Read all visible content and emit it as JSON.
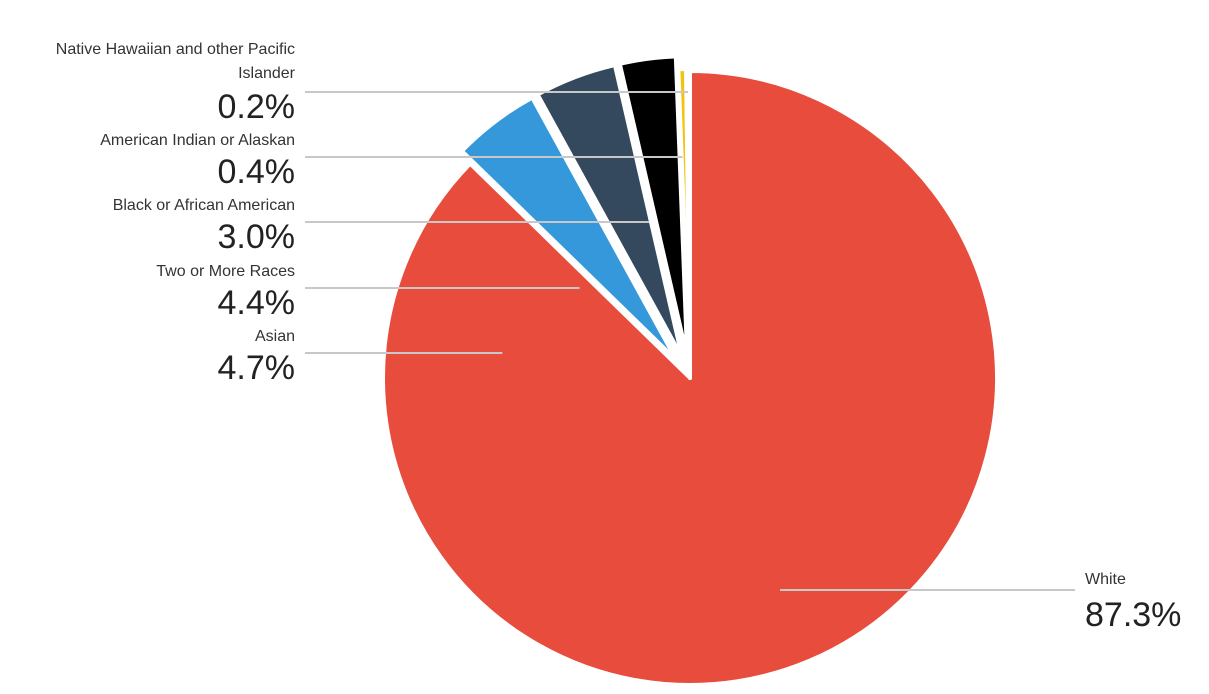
{
  "chart_data": {
    "type": "pie",
    "start_angle_deg": 0,
    "direction": "clockwise",
    "slices": [
      {
        "label": "White",
        "value": 87.3,
        "display": "87.3%",
        "color": "#e74c3c",
        "exploded": false
      },
      {
        "label": "Asian",
        "value": 4.7,
        "display": "4.7%",
        "color": "#3498db",
        "exploded": true
      },
      {
        "label": "Two or More Races",
        "value": 4.4,
        "display": "4.4%",
        "color": "#34495e",
        "exploded": true
      },
      {
        "label": "Black or African American",
        "value": 3.0,
        "display": "3.0%",
        "color": "#000000",
        "exploded": true
      },
      {
        "label": "American Indian or Alaskan",
        "value": 0.4,
        "display": "0.4%",
        "color": "#f1c40f",
        "exploded": true
      },
      {
        "label": "Native Hawaiian and other Pacific Islander",
        "value": 0.2,
        "display": "0.2%",
        "color": "#9b59b6",
        "exploded": true
      }
    ]
  }
}
